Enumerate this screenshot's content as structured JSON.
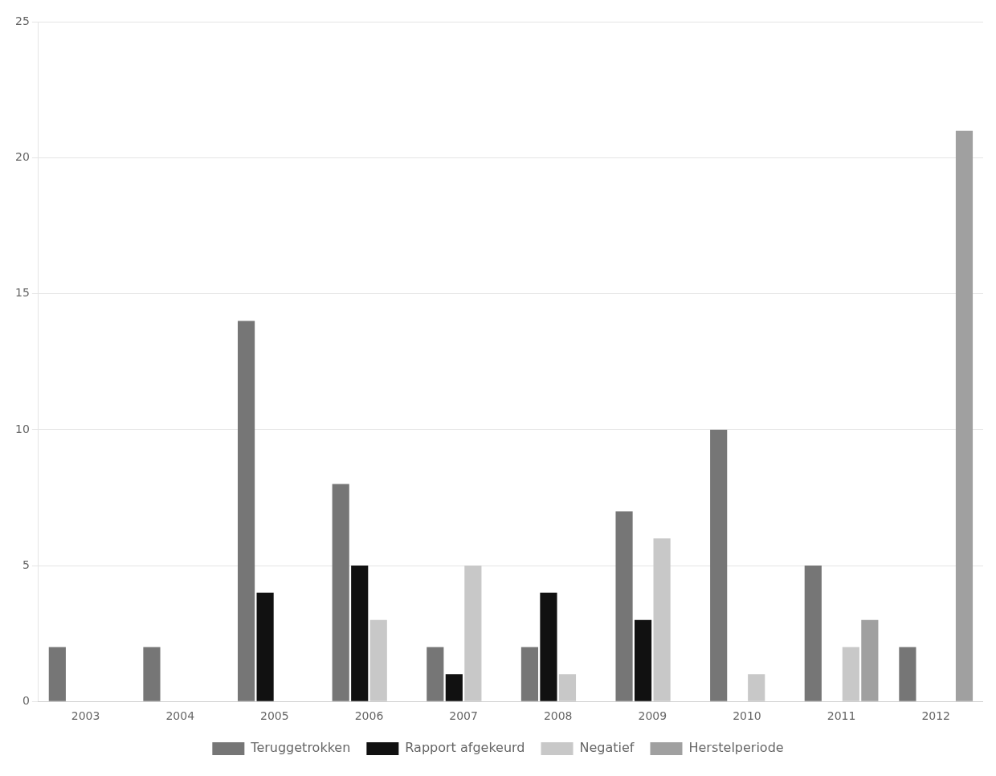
{
  "chart_data": {
    "type": "bar",
    "categories": [
      "2003",
      "2004",
      "2005",
      "2006",
      "2007",
      "2008",
      "2009",
      "2010",
      "2011",
      "2012"
    ],
    "series": [
      {
        "name": "Teruggetrokken",
        "color": "#767676",
        "values": [
          2,
          2,
          14,
          8,
          2,
          2,
          7,
          10,
          5,
          2
        ]
      },
      {
        "name": "Rapport afgekeurd",
        "color": "#111111",
        "values": [
          0,
          0,
          4,
          5,
          1,
          4,
          3,
          0,
          0,
          0
        ]
      },
      {
        "name": "Negatief",
        "color": "#c8c8c8",
        "values": [
          0,
          0,
          0,
          3,
          5,
          1,
          6,
          1,
          2,
          0
        ]
      },
      {
        "name": "Herstelperiode",
        "color": "#a0a0a0",
        "values": [
          0,
          0,
          0,
          0,
          0,
          0,
          0,
          0,
          3,
          21
        ]
      }
    ],
    "ylim": [
      0,
      25
    ],
    "yticks": [
      0,
      5,
      10,
      15,
      20,
      25
    ],
    "grid": true,
    "legend": "bottom"
  }
}
